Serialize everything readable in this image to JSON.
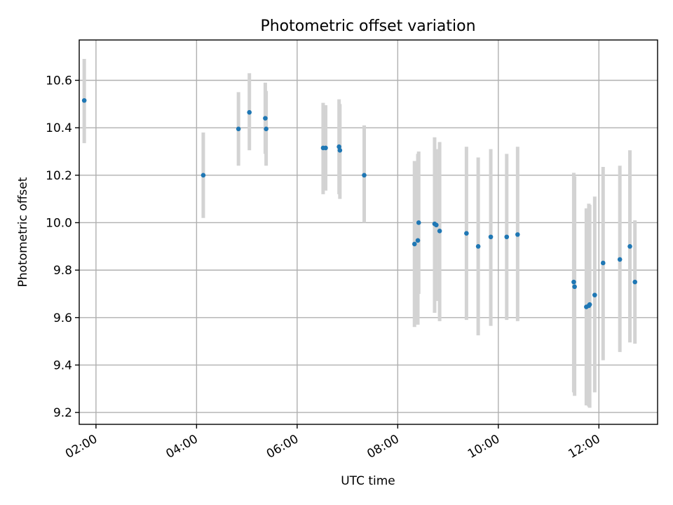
{
  "chart_data": {
    "type": "scatter",
    "title": "Photometric offset variation",
    "xlabel": "UTC time",
    "ylabel": "Photometric offset",
    "grid": true,
    "xlim": [
      "01:40",
      "13:10"
    ],
    "ylim": [
      9.15,
      10.77
    ],
    "x_ticks": [
      "02:00",
      "04:00",
      "06:00",
      "08:00",
      "10:00",
      "12:00"
    ],
    "y_ticks": [
      9.2,
      9.4,
      9.6,
      9.8,
      10.0,
      10.2,
      10.4,
      10.6
    ],
    "y_tick_labels": [
      "9.2",
      "9.4",
      "9.6",
      "9.8",
      "10.0",
      "10.2",
      "10.4",
      "10.6"
    ],
    "point_color": "#1f77b4",
    "errorbar_color": "#d3d3d3",
    "points": [
      {
        "t": "01:46",
        "y": 10.515,
        "lo": 10.335,
        "hi": 10.69
      },
      {
        "t": "04:08",
        "y": 10.2,
        "lo": 10.02,
        "hi": 10.38
      },
      {
        "t": "04:50",
        "y": 10.395,
        "lo": 10.24,
        "hi": 10.55
      },
      {
        "t": "05:03",
        "y": 10.465,
        "lo": 10.305,
        "hi": 10.63
      },
      {
        "t": "05:22",
        "y": 10.44,
        "lo": 10.29,
        "hi": 10.59
      },
      {
        "t": "05:23",
        "y": 10.395,
        "lo": 10.24,
        "hi": 10.555
      },
      {
        "t": "06:31",
        "y": 10.315,
        "lo": 10.12,
        "hi": 10.505
      },
      {
        "t": "06:34",
        "y": 10.315,
        "lo": 10.135,
        "hi": 10.495
      },
      {
        "t": "06:50",
        "y": 10.32,
        "lo": 10.12,
        "hi": 10.52
      },
      {
        "t": "06:51",
        "y": 10.305,
        "lo": 10.1,
        "hi": 10.5
      },
      {
        "t": "07:20",
        "y": 10.2,
        "lo": 10.0,
        "hi": 10.41
      },
      {
        "t": "08:20",
        "y": 9.91,
        "lo": 9.56,
        "hi": 10.26
      },
      {
        "t": "08:24",
        "y": 9.925,
        "lo": 9.57,
        "hi": 10.29
      },
      {
        "t": "08:25",
        "y": 10.0,
        "lo": 9.7,
        "hi": 10.3
      },
      {
        "t": "08:44",
        "y": 9.995,
        "lo": 9.62,
        "hi": 10.36
      },
      {
        "t": "08:46",
        "y": 9.99,
        "lo": 9.67,
        "hi": 10.31
      },
      {
        "t": "08:50",
        "y": 9.965,
        "lo": 9.585,
        "hi": 10.34
      },
      {
        "t": "09:22",
        "y": 9.955,
        "lo": 9.59,
        "hi": 10.32
      },
      {
        "t": "09:36",
        "y": 9.9,
        "lo": 9.525,
        "hi": 10.275
      },
      {
        "t": "09:51",
        "y": 9.94,
        "lo": 9.565,
        "hi": 10.31
      },
      {
        "t": "10:10",
        "y": 9.94,
        "lo": 9.59,
        "hi": 10.29
      },
      {
        "t": "10:23",
        "y": 9.95,
        "lo": 9.585,
        "hi": 10.32
      },
      {
        "t": "11:30",
        "y": 9.75,
        "lo": 9.285,
        "hi": 10.21
      },
      {
        "t": "11:31",
        "y": 9.73,
        "lo": 9.27,
        "hi": 10.195
      },
      {
        "t": "11:45",
        "y": 9.645,
        "lo": 9.23,
        "hi": 10.06
      },
      {
        "t": "11:48",
        "y": 9.65,
        "lo": 9.225,
        "hi": 10.08
      },
      {
        "t": "11:49",
        "y": 9.655,
        "lo": 9.22,
        "hi": 10.075
      },
      {
        "t": "11:55",
        "y": 9.695,
        "lo": 9.285,
        "hi": 10.11
      },
      {
        "t": "12:05",
        "y": 9.83,
        "lo": 9.42,
        "hi": 10.235
      },
      {
        "t": "12:25",
        "y": 9.845,
        "lo": 9.455,
        "hi": 10.24
      },
      {
        "t": "12:37",
        "y": 9.9,
        "lo": 9.495,
        "hi": 10.305
      },
      {
        "t": "12:43",
        "y": 9.75,
        "lo": 9.49,
        "hi": 10.01
      }
    ]
  }
}
